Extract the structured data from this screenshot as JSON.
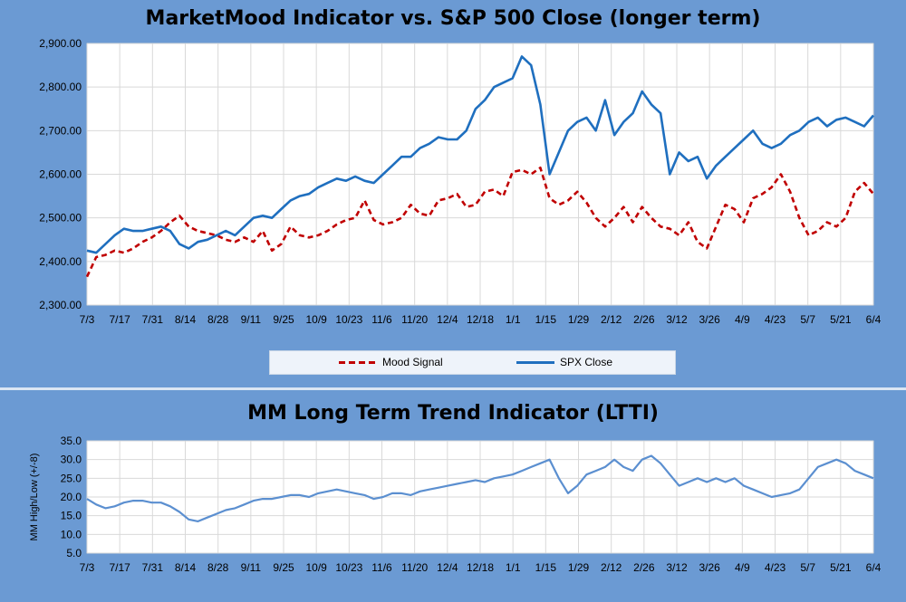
{
  "chart_data": [
    {
      "type": "line",
      "title": "MarketMood Indicator vs. S&P 500 Close (longer term)",
      "ylim": [
        2300,
        2900
      ],
      "yticks": [
        "2,300.00",
        "2,400.00",
        "2,500.00",
        "2,600.00",
        "2,700.00",
        "2,800.00",
        "2,900.00"
      ],
      "ytick_values": [
        2300,
        2400,
        2500,
        2600,
        2700,
        2800,
        2900
      ],
      "xticks": [
        "7/3",
        "7/17",
        "7/31",
        "8/14",
        "8/28",
        "9/11",
        "9/25",
        "10/9",
        "10/23",
        "11/6",
        "11/20",
        "12/4",
        "12/18",
        "1/1",
        "1/15",
        "1/29",
        "2/12",
        "2/26",
        "3/12",
        "3/26",
        "4/9",
        "4/23",
        "5/7",
        "5/21",
        "6/4"
      ],
      "grid": true,
      "legend": "bottom",
      "series": [
        {
          "name": "Mood Signal",
          "color": "#c00000",
          "style": "dashed",
          "values": [
            2365,
            2410,
            2415,
            2425,
            2420,
            2430,
            2445,
            2455,
            2470,
            2490,
            2505,
            2480,
            2470,
            2465,
            2460,
            2450,
            2445,
            2455,
            2445,
            2470,
            2425,
            2440,
            2480,
            2460,
            2455,
            2460,
            2470,
            2485,
            2495,
            2500,
            2540,
            2495,
            2485,
            2490,
            2500,
            2530,
            2510,
            2505,
            2540,
            2545,
            2555,
            2525,
            2530,
            2560,
            2565,
            2550,
            2605,
            2610,
            2600,
            2615,
            2545,
            2530,
            2540,
            2560,
            2535,
            2500,
            2480,
            2500,
            2525,
            2490,
            2525,
            2500,
            2480,
            2475,
            2460,
            2490,
            2445,
            2430,
            2480,
            2530,
            2520,
            2490,
            2545,
            2555,
            2570,
            2600,
            2560,
            2500,
            2460,
            2470,
            2490,
            2480,
            2500,
            2560,
            2580,
            2555
          ]
        },
        {
          "name": "SPX Close",
          "color": "#1f6fbf",
          "style": "solid",
          "values": [
            2425,
            2420,
            2440,
            2460,
            2475,
            2470,
            2470,
            2475,
            2480,
            2470,
            2440,
            2430,
            2445,
            2450,
            2460,
            2470,
            2460,
            2480,
            2500,
            2505,
            2500,
            2520,
            2540,
            2550,
            2555,
            2570,
            2580,
            2590,
            2585,
            2595,
            2585,
            2580,
            2600,
            2620,
            2640,
            2640,
            2660,
            2670,
            2685,
            2680,
            2680,
            2700,
            2750,
            2770,
            2800,
            2810,
            2820,
            2870,
            2850,
            2760,
            2600,
            2650,
            2700,
            2720,
            2730,
            2700,
            2770,
            2690,
            2720,
            2740,
            2790,
            2760,
            2740,
            2600,
            2650,
            2630,
            2640,
            2590,
            2620,
            2640,
            2660,
            2680,
            2700,
            2670,
            2660,
            2670,
            2690,
            2700,
            2720,
            2730,
            2710,
            2725,
            2730,
            2720,
            2710,
            2735
          ]
        }
      ]
    },
    {
      "type": "line",
      "title": "MM Long Term Trend Indicator (LTTI)",
      "ylabel": "MM High/Low (+/-8)",
      "ylim": [
        5,
        35
      ],
      "yticks": [
        "5.0",
        "10.0",
        "15.0",
        "20.0",
        "25.0",
        "30.0",
        "35.0"
      ],
      "ytick_values": [
        5,
        10,
        15,
        20,
        25,
        30,
        35
      ],
      "xticks": [
        "7/3",
        "7/17",
        "7/31",
        "8/14",
        "8/28",
        "9/11",
        "9/25",
        "10/9",
        "10/23",
        "11/6",
        "11/20",
        "12/4",
        "12/18",
        "1/1",
        "1/15",
        "1/29",
        "2/12",
        "2/26",
        "3/12",
        "3/26",
        "4/9",
        "4/23",
        "5/7",
        "5/21",
        "6/4"
      ],
      "grid": true,
      "series": [
        {
          "name": "",
          "color": "#5b8fd0",
          "style": "solid",
          "values": [
            19.5,
            18,
            17,
            17.5,
            18.5,
            19,
            19,
            18.5,
            18.5,
            17.5,
            16,
            14,
            13.5,
            14.5,
            15.5,
            16.5,
            17,
            18,
            19,
            19.5,
            19.5,
            20,
            20.5,
            20.5,
            20,
            21,
            21.5,
            22,
            21.5,
            21,
            20.5,
            19.5,
            20,
            21,
            21,
            20.5,
            21.5,
            22,
            22.5,
            23,
            23.5,
            24,
            24.5,
            24,
            25,
            25.5,
            26,
            27,
            28,
            29,
            30,
            25,
            21,
            23,
            26,
            27,
            28,
            30,
            28,
            27,
            30,
            31,
            29,
            26,
            23,
            24,
            25,
            24,
            25,
            24,
            25,
            23,
            22,
            21,
            20,
            20.5,
            21,
            22,
            25,
            28,
            29,
            30,
            29,
            27,
            26,
            25
          ]
        }
      ]
    }
  ],
  "legend": {
    "mood_label": "Mood Signal",
    "spx_label": "SPX Close"
  }
}
